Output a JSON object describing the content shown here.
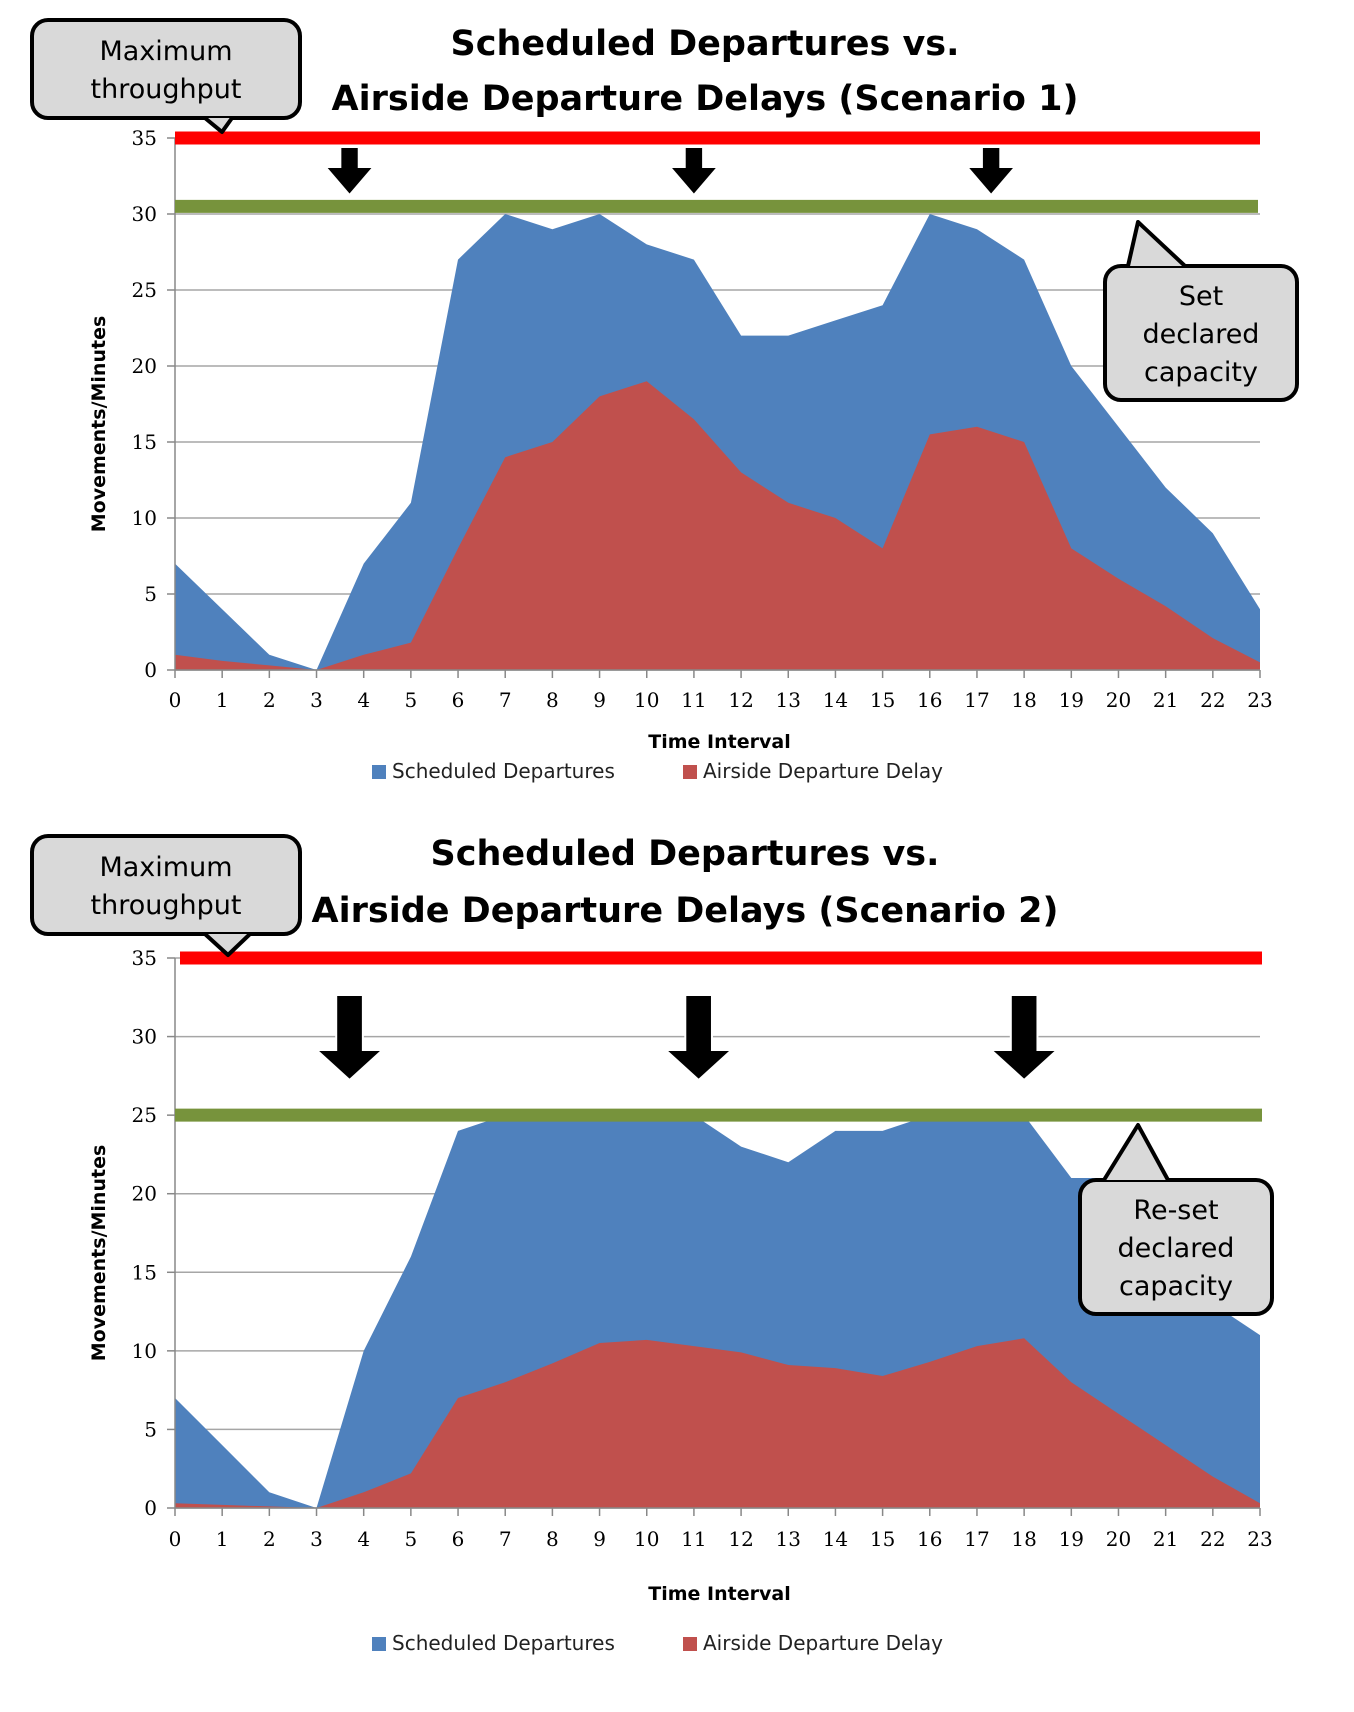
{
  "chart_data": [
    {
      "type": "area",
      "title": [
        "Scheduled Departures vs.",
        "Airside Departure Delays (Scenario 1)"
      ],
      "xlabel": "Time Interval",
      "ylabel": "Movements/Minutes",
      "x": [
        0,
        1,
        2,
        3,
        4,
        5,
        6,
        7,
        8,
        9,
        10,
        11,
        12,
        13,
        14,
        15,
        16,
        17,
        18,
        19,
        20,
        21,
        22,
        23
      ],
      "ylim": [
        0,
        35
      ],
      "yticks": [
        0,
        5,
        10,
        15,
        20,
        25,
        30,
        35
      ],
      "grid": true,
      "legend_position": "bottom",
      "series": [
        {
          "name": "Scheduled Departures",
          "color": "#4f81bd",
          "values": [
            7,
            4,
            1,
            0,
            7,
            11,
            27,
            30,
            29,
            30,
            28,
            27,
            22,
            22,
            23,
            24,
            30,
            29,
            27,
            20,
            16,
            12,
            9,
            4
          ]
        },
        {
          "name": "Airside Departure Delay",
          "color": "#c0504d",
          "values": [
            1,
            0.6,
            0.3,
            0,
            1,
            1.8,
            8,
            14,
            15,
            18,
            19,
            16.5,
            13,
            11,
            10,
            8,
            15.5,
            16,
            15,
            8,
            6,
            4.2,
            2.1,
            0.5
          ]
        }
      ],
      "reference_lines": [
        {
          "name": "max_throughput",
          "value": 35,
          "color": "#ff0000"
        },
        {
          "name": "declared_capacity",
          "value": 30.5,
          "color": "#77933c"
        }
      ],
      "arrows": [
        3.7,
        11,
        17.3
      ],
      "callouts": [
        {
          "name": "max",
          "lines": [
            "Maximum",
            "throughput"
          ]
        },
        {
          "name": "capacity",
          "lines": [
            "Set",
            "declared",
            "capacity"
          ]
        }
      ]
    },
    {
      "type": "area",
      "title": [
        "Scheduled Departures vs.",
        "Airside Departure Delays (Scenario 2)"
      ],
      "xlabel": "Time Interval",
      "ylabel": "Movements/Minutes",
      "x": [
        0,
        1,
        2,
        3,
        4,
        5,
        6,
        7,
        8,
        9,
        10,
        11,
        12,
        13,
        14,
        15,
        16,
        17,
        18,
        19,
        20,
        21,
        22,
        23
      ],
      "ylim": [
        0,
        35
      ],
      "yticks": [
        0,
        5,
        10,
        15,
        20,
        25,
        30,
        35
      ],
      "grid": true,
      "legend_position": "bottom",
      "series": [
        {
          "name": "Scheduled Departures",
          "color": "#4f81bd",
          "values": [
            7,
            4,
            1,
            0,
            10,
            16,
            24,
            25,
            25,
            25,
            25,
            25,
            23,
            22,
            24,
            24,
            25,
            25,
            25,
            21,
            21,
            17,
            13,
            11
          ]
        },
        {
          "name": "Airside Departure Delay",
          "color": "#c0504d",
          "values": [
            0.3,
            0.2,
            0.1,
            0,
            1,
            2.2,
            7,
            8,
            9.2,
            10.5,
            10.7,
            10.3,
            9.9,
            9.1,
            8.9,
            8.4,
            9.3,
            10.3,
            10.8,
            8,
            6,
            4,
            2,
            0.3
          ]
        }
      ],
      "reference_lines": [
        {
          "name": "max_throughput",
          "value": 35,
          "color": "#ff0000"
        },
        {
          "name": "declared_capacity",
          "value": 25,
          "color": "#77933c"
        }
      ],
      "arrows": [
        3.7,
        11.1,
        18
      ],
      "callouts": [
        {
          "name": "max",
          "lines": [
            "Maximum",
            "throughput"
          ]
        },
        {
          "name": "capacity",
          "lines": [
            "Re-set",
            "declared",
            "capacity"
          ]
        }
      ]
    }
  ]
}
